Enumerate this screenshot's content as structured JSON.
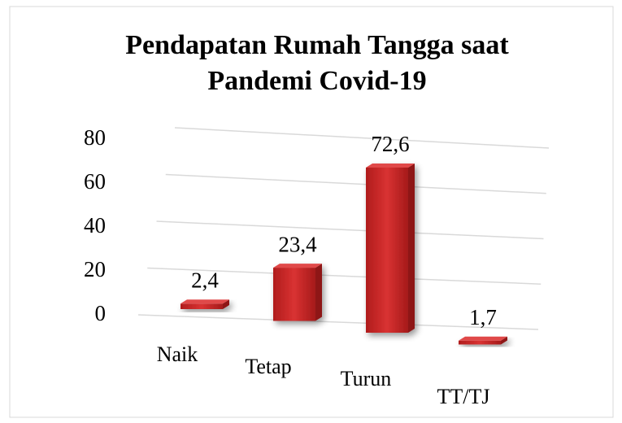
{
  "chart_data": {
    "type": "bar",
    "title": "Pendapatan Rumah Tangga saat",
    "subtitle": "Pandemi Covid-19",
    "categories": [
      "Naik",
      "Tetap",
      "Turun",
      "TT/TJ"
    ],
    "values": [
      2.4,
      23.4,
      72.6,
      1.7
    ],
    "value_labels": [
      "2,4",
      "23,4",
      "72,6",
      "1,7"
    ],
    "color": "#c62828",
    "ylim": [
      0,
      80
    ],
    "yticks": [
      0,
      20,
      40,
      60,
      80
    ],
    "grid": true
  }
}
